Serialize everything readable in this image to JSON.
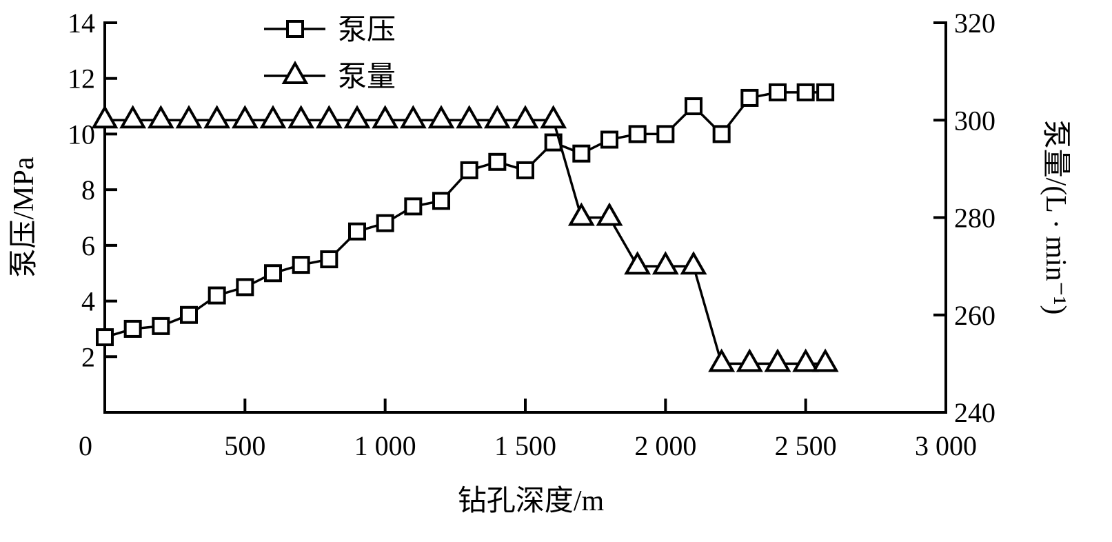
{
  "chart_data": {
    "type": "line",
    "xlabel": "钻孔深度/m",
    "ylabel": "泵压/MPa",
    "y2label": "泵量/(L · min⁻¹)",
    "xlim": [
      0,
      3000
    ],
    "ylim": [
      0,
      14
    ],
    "y2lim": [
      240,
      320
    ],
    "xticks": [
      0,
      500,
      1000,
      1500,
      2000,
      2500,
      3000
    ],
    "xtick_labels": [
      "0",
      "500",
      "1 000",
      "1 500",
      "2 000",
      "2 500",
      "3 000"
    ],
    "yticks": [
      2,
      4,
      6,
      8,
      10,
      12,
      14
    ],
    "y2ticks": [
      240,
      260,
      280,
      300,
      320
    ],
    "grid": false,
    "legend_position": "top-left",
    "colors": {
      "line": "#000000",
      "marker_fill": "#ffffff"
    },
    "series": [
      {
        "name": "泵压",
        "axis": "left",
        "marker": "square",
        "x": [
          0,
          100,
          200,
          300,
          400,
          500,
          600,
          700,
          800,
          900,
          1000,
          1100,
          1200,
          1300,
          1400,
          1500,
          1600,
          1700,
          1800,
          1900,
          2000,
          2100,
          2200,
          2300,
          2400,
          2500,
          2570
        ],
        "values": [
          2.7,
          3.0,
          3.1,
          3.5,
          4.2,
          4.5,
          5.0,
          5.3,
          5.5,
          6.5,
          6.8,
          7.4,
          7.6,
          8.7,
          9.0,
          8.7,
          9.7,
          9.3,
          9.8,
          10.0,
          10.0,
          11.0,
          10.0,
          11.3,
          11.5,
          11.5,
          11.5
        ]
      },
      {
        "name": "泵量",
        "axis": "right",
        "marker": "triangle",
        "x": [
          0,
          100,
          200,
          300,
          400,
          500,
          600,
          700,
          800,
          900,
          1000,
          1100,
          1200,
          1300,
          1400,
          1500,
          1600,
          1700,
          1800,
          1900,
          2000,
          2100,
          2200,
          2300,
          2400,
          2500,
          2570
        ],
        "values": [
          300,
          300,
          300,
          300,
          300,
          300,
          300,
          300,
          300,
          300,
          300,
          300,
          300,
          300,
          300,
          300,
          300,
          280,
          280,
          270,
          270,
          270,
          250,
          250,
          250,
          250,
          250
        ]
      }
    ]
  }
}
